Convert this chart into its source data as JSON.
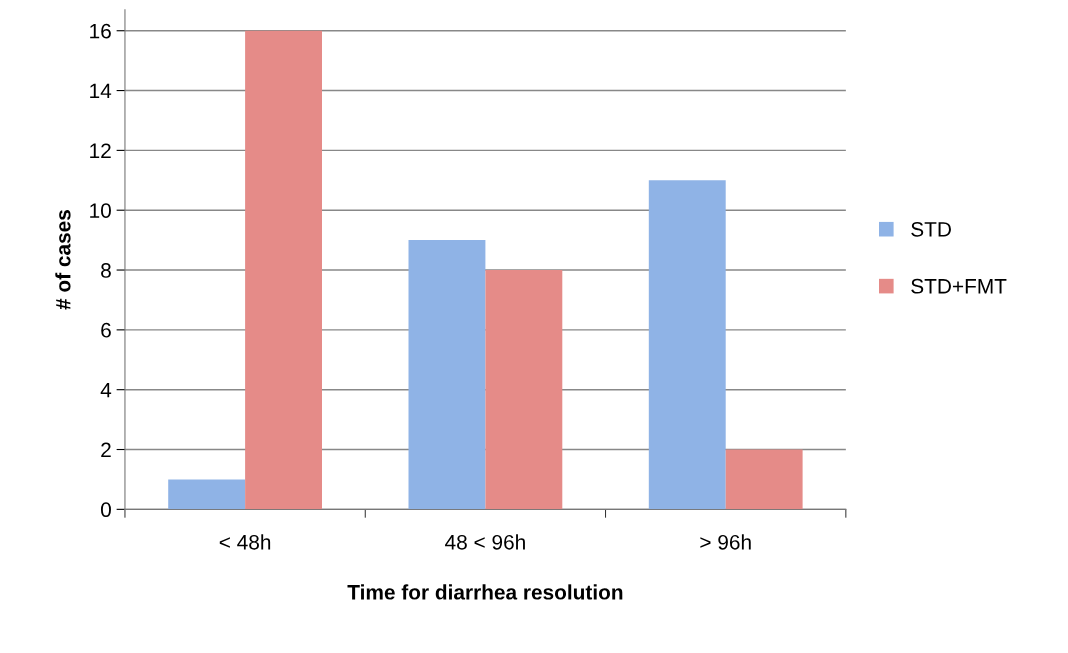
{
  "chart_data": {
    "type": "bar",
    "xlabel": "Time for diarrhea resolution",
    "ylabel": "# of cases",
    "categories": [
      "< 48h",
      "48 < 96h",
      "> 96h"
    ],
    "series": [
      {
        "name": "STD",
        "color": "#8fb3e6",
        "values": [
          1,
          9,
          11
        ]
      },
      {
        "name": "STD+FMT",
        "color": "#e58b88",
        "values": [
          16,
          8,
          2
        ]
      }
    ],
    "ylim": [
      0,
      16.7
    ],
    "yticks": [
      0,
      2,
      4,
      6,
      8,
      10,
      12,
      14,
      16
    ],
    "grid": "y",
    "legend": "right"
  }
}
